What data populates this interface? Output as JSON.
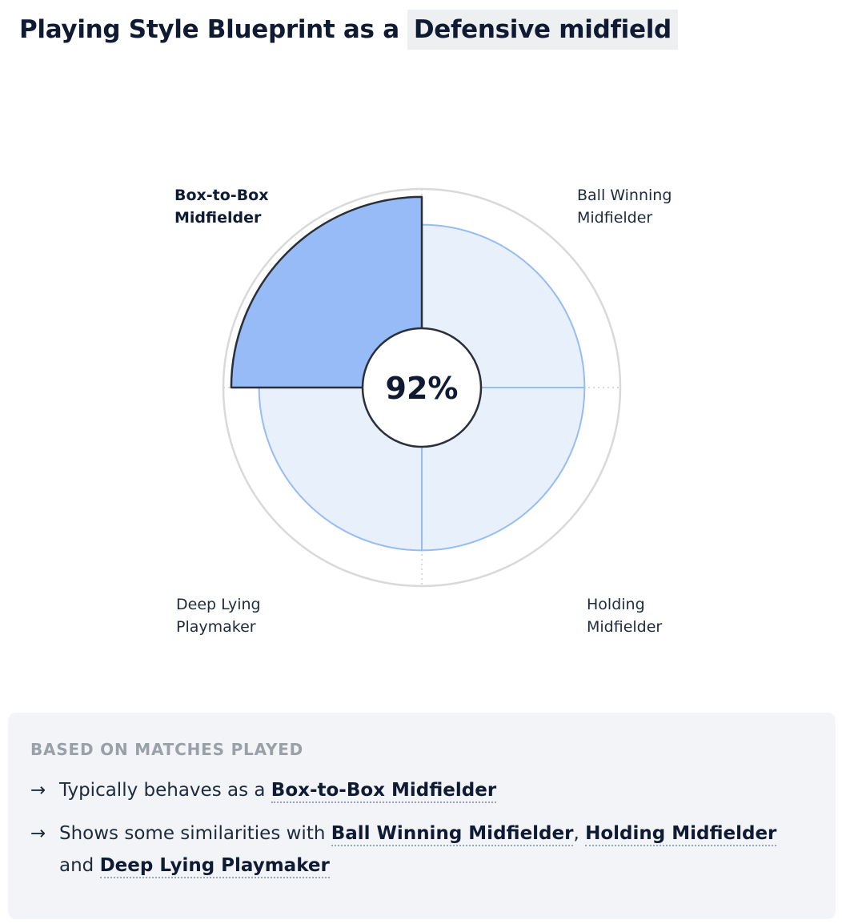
{
  "header": {
    "title_prefix": "Playing Style Blueprint as a",
    "position": "Defensive midfield"
  },
  "chart_data": {
    "type": "polar-area",
    "center_value": "92%",
    "selected_role": "Box-to-Box Midfielder",
    "segments": [
      {
        "label_line1": "Ball Winning",
        "label_line2": "Midfielder",
        "value": 0.82,
        "selected": false
      },
      {
        "label_line1": "Holding",
        "label_line2": "Midfielder",
        "value": 0.82,
        "selected": false
      },
      {
        "label_line1": "Deep Lying",
        "label_line2": "Playmaker",
        "value": 0.82,
        "selected": false
      },
      {
        "label_line1": "Box-to-Box",
        "label_line2": "Midfielder",
        "value": 0.96,
        "selected": true
      }
    ],
    "colors": {
      "selected_fill": "#97bbf6",
      "other_fill": "#e8f0fc",
      "other_stroke": "#96bcf2",
      "outer_ring": "#d9d9d9",
      "selected_stroke": "#2a2f38"
    }
  },
  "summary": {
    "heading": "BASED ON MATCHES PLAYED",
    "arrow": "→",
    "line1_prefix": "Typically behaves as a",
    "line1_role": "Box-to-Box Midfielder",
    "line2_prefix": "Shows some similarities with",
    "line2_role1": "Ball Winning Midfielder",
    "line2_sep": ",",
    "line2_role2": "Holding Midfielder",
    "line2_and": "and",
    "line2_role3": "Deep Lying Playmaker"
  }
}
